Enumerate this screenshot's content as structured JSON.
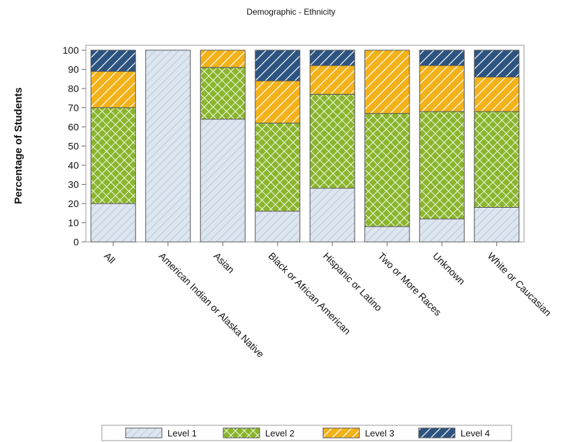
{
  "chart_data": {
    "type": "bar",
    "stacked": true,
    "title": "Demographic - Ethnicity",
    "xlabel": "",
    "ylabel": "Percentage of Students",
    "ylim": [
      0,
      100
    ],
    "yticks": [
      0,
      10,
      20,
      30,
      40,
      50,
      60,
      70,
      80,
      90,
      100
    ],
    "grid": false,
    "legend_position": "bottom",
    "categories": [
      "All",
      "American Indian or Alaska Native",
      "Asian",
      "Black or African American",
      "Hispanic or Latino",
      "Two or More Races",
      "Unknown",
      "White or Caucasian"
    ],
    "series": [
      {
        "name": "Level 1",
        "color": "#dde6f0",
        "pattern": "diagonal-hatch",
        "values": [
          20,
          100,
          64,
          16,
          28,
          8,
          12,
          18
        ]
      },
      {
        "name": "Level 2",
        "color": "#8ab52c",
        "pattern": "crosshatch",
        "values": [
          50,
          0,
          27,
          46,
          49,
          59,
          56,
          50
        ]
      },
      {
        "name": "Level 3",
        "color": "#f3b219",
        "pattern": "diagonal-hatch",
        "values": [
          19,
          0,
          9,
          22,
          15,
          33,
          24,
          18
        ]
      },
      {
        "name": "Level 4",
        "color": "#2d5480",
        "pattern": "diagonal-hatch",
        "values": [
          11,
          0,
          0,
          16,
          8,
          0,
          8,
          14
        ]
      }
    ]
  }
}
